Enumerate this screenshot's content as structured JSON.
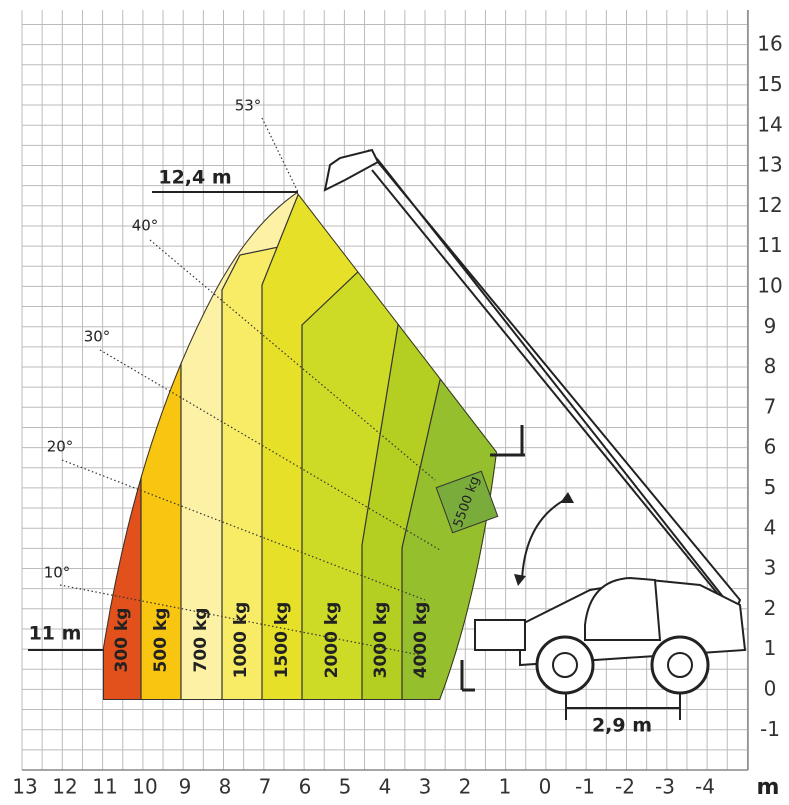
{
  "axes": {
    "x_ticks": [
      13,
      12,
      11,
      10,
      9,
      8,
      7,
      6,
      5,
      4,
      3,
      2,
      1,
      0,
      -1,
      -2,
      -3,
      -4
    ],
    "y_ticks": [
      -1,
      0,
      1,
      2,
      3,
      4,
      5,
      6,
      7,
      8,
      9,
      10,
      11,
      12,
      13,
      14,
      15,
      16
    ],
    "unit": "m"
  },
  "zones": [
    "300 kg",
    "500 kg",
    "700 kg",
    "1000 kg",
    "1500 kg",
    "2000 kg",
    "3000 kg",
    "4000 kg",
    "5500 kg"
  ],
  "angles": [
    "53°",
    "40°",
    "30°",
    "20°",
    "10°"
  ],
  "dimensions": {
    "max_height": "12,4 m",
    "max_reach": "11 m",
    "wheelbase": "2,9 m"
  }
}
